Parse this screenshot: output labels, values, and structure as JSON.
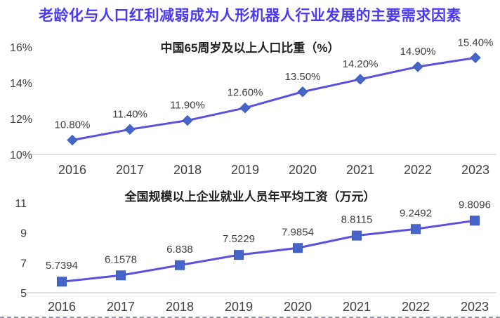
{
  "page_title": "老龄化与人口红利减弱成为人形机器人行业发展的主要需求因素",
  "colors": {
    "page_title": "#4A3AF5",
    "line": "#5B50E0",
    "marker_fill": "#4565C8",
    "marker_stroke": "#3D5BBE",
    "axis_line": "#D6D6D6",
    "text": "#404040",
    "chart_title": "#1F1F1F",
    "bottom_border": "#8A97AC"
  },
  "chart_data": [
    {
      "type": "line",
      "title": "中国65周岁及以上人口比重（%）",
      "categories": [
        "2016",
        "2017",
        "2018",
        "2019",
        "2020",
        "2021",
        "2022",
        "2023"
      ],
      "values": [
        10.8,
        11.4,
        11.9,
        12.6,
        13.5,
        14.2,
        14.9,
        15.4
      ],
      "data_labels": [
        "10.80%",
        "11.40%",
        "11.90%",
        "12.60%",
        "13.50%",
        "14.20%",
        "14.90%",
        "15.40%"
      ],
      "xlabel": "",
      "ylabel": "",
      "ylim": [
        10,
        16
      ],
      "yticks": [
        {
          "value": 10,
          "label": "10%"
        },
        {
          "value": 12,
          "label": "12%"
        },
        {
          "value": 14,
          "label": "14%"
        },
        {
          "value": 16,
          "label": "16%"
        }
      ],
      "marker": "diamond",
      "grid": false,
      "legend": "none"
    },
    {
      "type": "line",
      "title": "全国规模以上企业就业人员年平均工资（万元）",
      "categories": [
        "2016",
        "2017",
        "2018",
        "2019",
        "2020",
        "2021",
        "2022",
        "2023"
      ],
      "values": [
        5.7394,
        6.1578,
        6.838,
        7.5229,
        7.9854,
        8.8115,
        9.2492,
        9.8096
      ],
      "data_labels": [
        "5.7394",
        "6.1578",
        "6.838",
        "7.5229",
        "7.9854",
        "8.8115",
        "9.2492",
        "9.8096"
      ],
      "xlabel": "",
      "ylabel": "",
      "ylim": [
        5,
        11
      ],
      "yticks": [
        {
          "value": 5,
          "label": "5"
        },
        {
          "value": 7,
          "label": "7"
        },
        {
          "value": 9,
          "label": "9"
        },
        {
          "value": 11,
          "label": "11"
        }
      ],
      "marker": "square",
      "grid": false,
      "legend": "none"
    }
  ]
}
